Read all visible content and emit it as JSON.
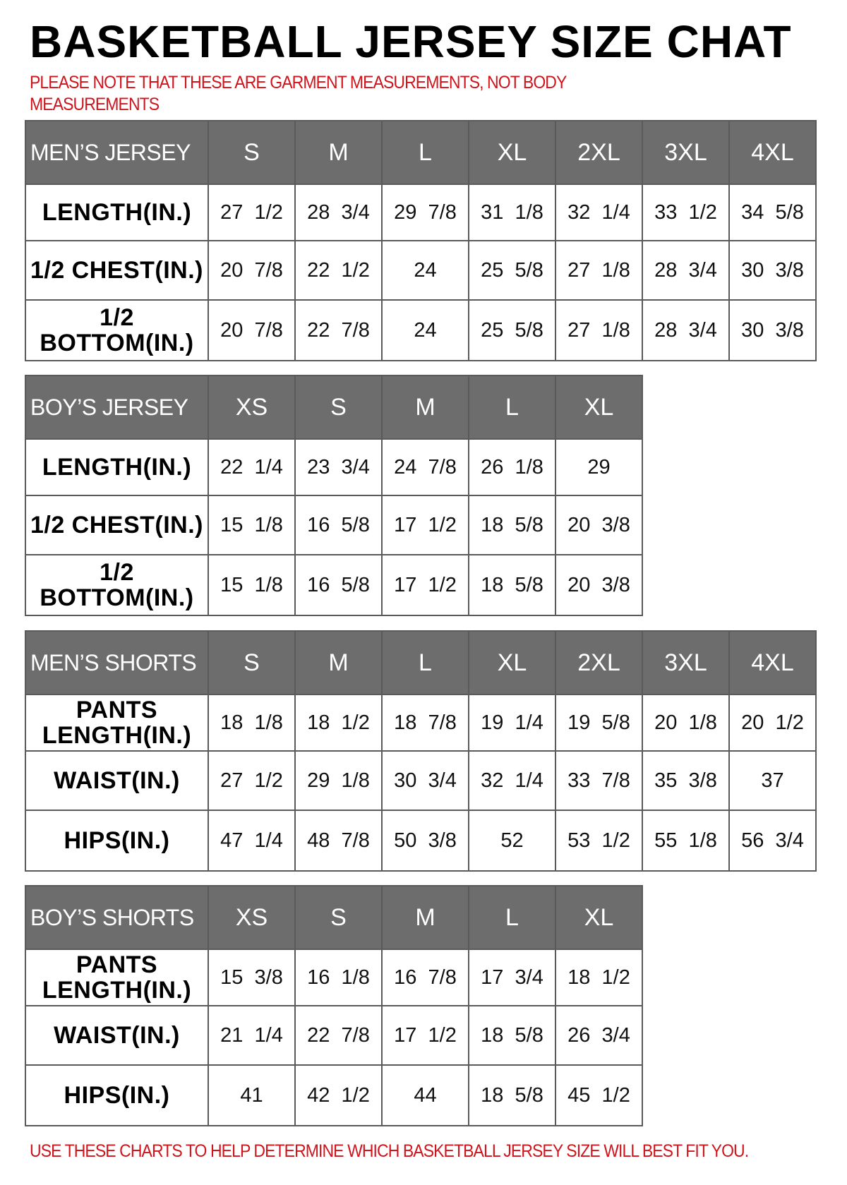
{
  "title": "BASKETBALL JERSEY SIZE CHAT",
  "note": "PLEASE NOTE THAT THESE ARE GARMENT MEASUREMENTS, NOT BODY MEASUREMENTS",
  "footer": "USE THESE CHARTS TO HELP DETERMINE WHICH BASKETBALL JERSEY SIZE WILL BEST FIT YOU.",
  "colors": {
    "header_bg": "#6d6d6d",
    "note_red": "#d0141c"
  },
  "tables": [
    {
      "name": "MEN’S JERSEY",
      "sizes": [
        "S",
        "M",
        "L",
        "XL",
        "2XL",
        "3XL",
        "4XL"
      ],
      "rows": [
        {
          "label": "LENGTH(IN.)",
          "values": [
            "27  1/2",
            "28  3/4",
            "29  7/8",
            "31  1/8",
            "32  1/4",
            "33  1/2",
            "34  5/8"
          ]
        },
        {
          "label": "1/2  CHEST(IN.)",
          "values": [
            "20  7/8",
            "22  1/2",
            "24",
            "25  5/8",
            "27  1/8",
            "28  3/4",
            "30  3/8"
          ]
        },
        {
          "label": "1/2  BOTTOM(IN.)",
          "values": [
            "20  7/8",
            "22  7/8",
            "24",
            "25  5/8",
            "27  1/8",
            "28  3/4",
            "30  3/8"
          ]
        }
      ]
    },
    {
      "name": "BOY’S JERSEY",
      "sizes": [
        "XS",
        "S",
        "M",
        "L",
        "XL"
      ],
      "rows": [
        {
          "label": "LENGTH(IN.)",
          "values": [
            "22  1/4",
            "23  3/4",
            "24  7/8",
            "26  1/8",
            "29"
          ]
        },
        {
          "label": "1/2  CHEST(IN.)",
          "values": [
            "15  1/8",
            "16  5/8",
            "17  1/2",
            "18  5/8",
            "20  3/8"
          ]
        },
        {
          "label": "1/2  BOTTOM(IN.)",
          "values": [
            "15  1/8",
            "16  5/8",
            "17  1/2",
            "18  5/8",
            "20  3/8"
          ]
        }
      ]
    },
    {
      "name": "MEN’S SHORTS",
      "sizes": [
        "S",
        "M",
        "L",
        "XL",
        "2XL",
        "3XL",
        "4XL"
      ],
      "rows": [
        {
          "label": "PANTS\nLENGTH(IN.)",
          "values": [
            "18  1/8",
            "18  1/2",
            "18  7/8",
            "19  1/4",
            "19  5/8",
            "20  1/8",
            "20  1/2"
          ]
        },
        {
          "label": "WAIST(IN.)",
          "values": [
            "27  1/2",
            "29  1/8",
            "30  3/4",
            "32  1/4",
            "33  7/8",
            "35  3/8",
            "37"
          ]
        },
        {
          "label": "HIPS(IN.)",
          "values": [
            "47  1/4",
            "48  7/8",
            "50  3/8",
            "52",
            "53  1/2",
            "55  1/8",
            "56  3/4"
          ]
        }
      ]
    },
    {
      "name": "BOY’S SHORTS",
      "sizes": [
        "XS",
        "S",
        "M",
        "L",
        "XL"
      ],
      "rows": [
        {
          "label": "PANTS\nLENGTH(IN.)",
          "values": [
            "15  3/8",
            "16  1/8",
            "16  7/8",
            "17  3/4",
            "18  1/2"
          ]
        },
        {
          "label": "WAIST(IN.)",
          "values": [
            "21  1/4",
            "22  7/8",
            "17  1/2",
            "18  5/8",
            "26  3/4"
          ]
        },
        {
          "label": "HIPS(IN.)",
          "values": [
            "41",
            "42  1/2",
            "44",
            "18  5/8",
            "45  1/2"
          ]
        }
      ]
    }
  ]
}
